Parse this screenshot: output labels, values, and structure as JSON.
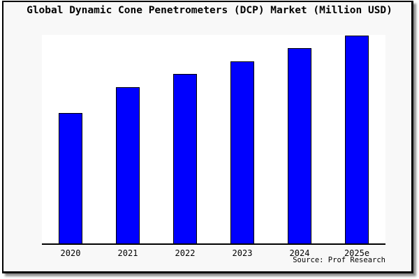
{
  "title": "Global Dynamic Cone Penetrometers (DCP) Market (Million USD)",
  "source_note": "Source: Prof Research",
  "colors": {
    "bar_fill": "#0000fe",
    "bar_border": "#000000",
    "plot_background": "#ffffff",
    "card_background": "#f8f8f8",
    "frame_border": "#000000",
    "text": "#000000"
  },
  "chart_data": {
    "type": "bar",
    "title": "Global Dynamic Cone Penetrometers (DCP) Market (Million USD)",
    "categories": [
      "2020",
      "2021",
      "2022",
      "2023",
      "2024",
      "2025e"
    ],
    "values": [
      62.9,
      75.3,
      81.6,
      87.8,
      94.0,
      100.0
    ],
    "value_scale_note": "percent of tallest bar (2025e); chart shows no numeric y-axis labels",
    "xlabel": "",
    "ylabel": "",
    "ylim": [
      0,
      100.3
    ],
    "grid": false,
    "legend": null,
    "series_count": 1,
    "bar_color": "#0000fe"
  }
}
